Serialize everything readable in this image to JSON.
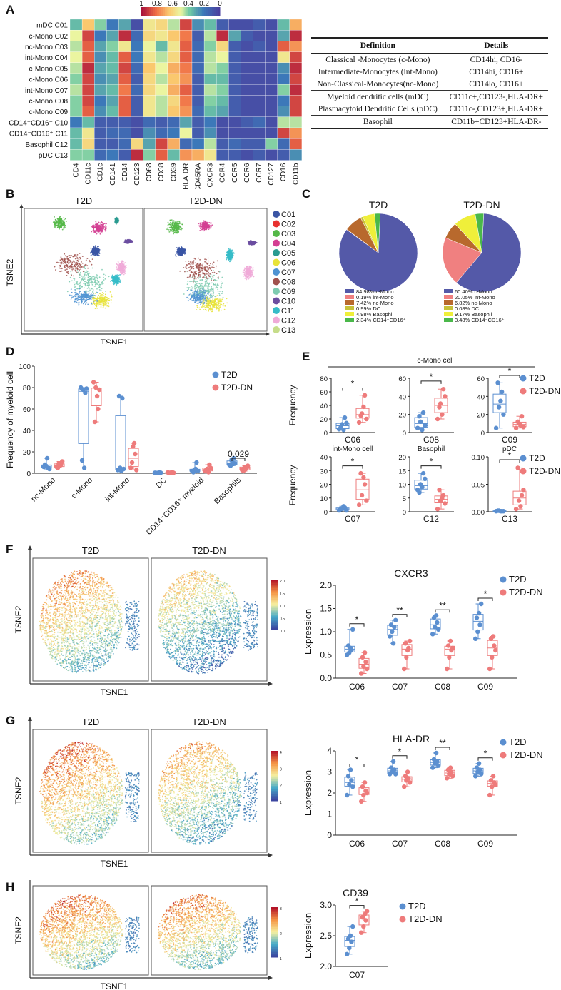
{
  "panels": {
    "A": "A",
    "B": "B",
    "C": "C",
    "D": "D",
    "E": "E",
    "F": "F",
    "G": "G",
    "H": "H"
  },
  "colors": {
    "t2d": "#5b8fd0",
    "t2ddn": "#ee7b7b"
  },
  "heatmap": {
    "scale_labels": [
      "1",
      "0.8",
      "0.6",
      "0.4",
      "0.2",
      "0"
    ],
    "rows": [
      "mDC C01",
      "c-Mono C02",
      "nc-Mono C03",
      "int-Mono C04",
      "c-Mono C05",
      "c-Mono C06",
      "int-Mono C07",
      "c-Mono C08",
      "c-Mono C09",
      "CD14⁻CD16⁺ C10",
      "CD14⁻CD16⁺ C11",
      "Basophil C12",
      "pDC C13"
    ],
    "cols": [
      "CD4",
      "CD11c",
      "CD1c",
      "CD141",
      "CD14",
      "CD123",
      "CD68",
      "CD38",
      "CD39",
      "HLA-DR",
      "CD45RA",
      "CXCR3",
      "CCR4",
      "CCR5",
      "CCR6",
      "CCR7",
      "CD127",
      "CD16",
      "CD11b"
    ],
    "values": [
      [
        0.35,
        0.65,
        0.4,
        0.2,
        0.3,
        0.05,
        0.55,
        0.6,
        0.45,
        0.9,
        0.25,
        0.35,
        0.1,
        0.05,
        0.05,
        0.1,
        0.05,
        0.35,
        0.7
      ],
      [
        0.5,
        0.9,
        0.2,
        0.3,
        0.95,
        0.15,
        0.6,
        0.55,
        0.65,
        0.8,
        0.1,
        0.45,
        0.95,
        0.3,
        0.1,
        0.05,
        0.05,
        0.3,
        0.95
      ],
      [
        0.45,
        0.85,
        0.3,
        0.4,
        0.55,
        0.2,
        0.5,
        0.35,
        0.55,
        0.85,
        0.15,
        0.4,
        0.6,
        0.1,
        0.05,
        0.1,
        0.05,
        0.85,
        0.75
      ],
      [
        0.5,
        0.85,
        0.25,
        0.35,
        0.85,
        0.2,
        0.55,
        0.45,
        0.6,
        0.85,
        0.15,
        0.45,
        0.5,
        0.1,
        0.05,
        0.05,
        0.05,
        0.55,
        0.9
      ],
      [
        0.45,
        0.95,
        0.3,
        0.35,
        0.9,
        0.15,
        0.65,
        0.5,
        0.7,
        0.8,
        0.15,
        0.45,
        0.4,
        0.1,
        0.05,
        0.05,
        0.05,
        0.25,
        0.95
      ],
      [
        0.4,
        0.9,
        0.25,
        0.3,
        0.85,
        0.1,
        0.6,
        0.45,
        0.65,
        0.75,
        0.1,
        0.35,
        0.35,
        0.1,
        0.05,
        0.05,
        0.05,
        0.2,
        0.9
      ],
      [
        0.45,
        0.9,
        0.3,
        0.35,
        0.8,
        0.15,
        0.6,
        0.5,
        0.7,
        0.85,
        0.1,
        0.45,
        0.4,
        0.1,
        0.05,
        0.05,
        0.05,
        0.4,
        0.95
      ],
      [
        0.4,
        0.9,
        0.2,
        0.3,
        0.85,
        0.1,
        0.55,
        0.45,
        0.6,
        0.8,
        0.1,
        0.4,
        0.35,
        0.1,
        0.05,
        0.05,
        0.05,
        0.2,
        0.9
      ],
      [
        0.4,
        0.85,
        0.25,
        0.35,
        0.85,
        0.1,
        0.55,
        0.45,
        0.65,
        0.75,
        0.15,
        0.35,
        0.3,
        0.1,
        0.05,
        0.05,
        0.05,
        0.25,
        0.9
      ],
      [
        0.2,
        0.35,
        0.1,
        0.1,
        0.1,
        0.05,
        0.15,
        0.1,
        0.15,
        0.3,
        0.1,
        0.2,
        0.05,
        0.05,
        0.1,
        0.15,
        0.05,
        0.45,
        0.45
      ],
      [
        0.35,
        0.55,
        0.1,
        0.15,
        0.15,
        0.05,
        0.25,
        0.15,
        0.2,
        0.5,
        0.1,
        0.25,
        0.05,
        0.05,
        0.05,
        0.05,
        0.05,
        0.9,
        0.75
      ],
      [
        0.35,
        0.6,
        0.1,
        0.1,
        0.15,
        0.6,
        0.3,
        0.9,
        0.7,
        0.15,
        0.2,
        0.45,
        0.1,
        0.15,
        0.1,
        0.1,
        0.4,
        0.15,
        0.85
      ],
      [
        0.4,
        0.4,
        0.15,
        0.2,
        0.1,
        0.95,
        0.4,
        0.85,
        0.35,
        0.75,
        0.7,
        0.55,
        0.1,
        0.1,
        0.05,
        0.1,
        0.05,
        0.1,
        0.25
      ]
    ]
  },
  "table": {
    "headers": [
      "Definition",
      "Details"
    ],
    "rows": [
      [
        "Classical -Monocytes (c-Mono)",
        "CD14hi, CD16-"
      ],
      [
        "Intermediate-Monocytes (int-Mono)",
        "CD14hi, CD16+"
      ],
      [
        "Non-Classical-Monocytes(nc-Mono)",
        "CD14lo, CD16+"
      ],
      [
        "Myeloid dendritic cells (mDC)",
        "CD11c+,CD123-,HLA-DR+"
      ],
      [
        "Plasmacytoid Dendritic Cells (pDC)",
        "CD11c-,CD123+,HLA-DR+"
      ],
      [
        "Basophil",
        "CD11b+CD123+HLA-DR-"
      ]
    ]
  },
  "tsneB": {
    "titles": [
      "T2D",
      "T2D-DN"
    ],
    "xlabel": "TSNE1",
    "ylabel": "TSNE2",
    "legend": [
      "C01",
      "C02",
      "C03",
      "C04",
      "C05",
      "C06",
      "C07",
      "C08",
      "C09",
      "C10",
      "C11",
      "C12",
      "C13"
    ],
    "legend_colors": [
      "#3a55a4",
      "#e8312f",
      "#55b848",
      "#d43f93",
      "#2a9b90",
      "#e8e33a",
      "#4f93d2",
      "#a0524d",
      "#7ecbb0",
      "#6b4ea0",
      "#36bcc8",
      "#f0aad8",
      "#c6dd8a"
    ]
  },
  "pies": {
    "titles": [
      "T2D",
      "T2D-DN"
    ],
    "colors": [
      "#5459a8",
      "#f08080",
      "#b8692d",
      "#c7c23a",
      "#efef3a",
      "#4ab84a"
    ],
    "t2d_legend": [
      "84.98% c-Mono",
      "0.19% int-Mono",
      "7.42% nc-Mono",
      "0.99% DC",
      "4.98% Basophil",
      "2.34% CD14⁻CD16⁺"
    ],
    "t2ddn_legend": [
      "60.40% c-Mono",
      "20.05% int-Mono",
      "6.82% nc-Mono",
      "0.08% DC",
      "9.17% Basophil",
      "3.48% CD14⁻CD16⁺"
    ]
  },
  "legend_labels": {
    "t2d": "T2D",
    "t2ddn": "T2D-DN"
  },
  "chart_data": [
    {
      "id": "D",
      "type": "box",
      "title": "",
      "ylabel": "Frequency of myeloid cell",
      "ylim": [
        0,
        100
      ],
      "yticks": [
        0,
        20,
        40,
        60,
        80,
        100
      ],
      "categories": [
        "nc-Mono",
        "c-Mono",
        "int-Mono",
        "DC",
        "CD14⁻CD16⁺ myeloid",
        "Basophils"
      ],
      "series": [
        {
          "name": "T2D",
          "values": [
            [
              6,
              7,
              5,
              8,
              14,
              4
            ],
            [
              80,
              78,
              75,
              12,
              5,
              79
            ],
            [
              3,
              5,
              70,
              72,
              2,
              4
            ],
            [
              0.5,
              0.3,
              0.6,
              0.2,
              0.4,
              0.5
            ],
            [
              2,
              3,
              10,
              1,
              4,
              2
            ],
            [
              8,
              12,
              14,
              7,
              10,
              9
            ]
          ]
        },
        {
          "name": "T2D-DN",
          "values": [
            [
              6,
              9,
              8,
              5,
              7,
              11
            ],
            [
              85,
              80,
              60,
              48,
              72,
              78
            ],
            [
              5,
              25,
              18,
              10,
              28,
              3
            ],
            [
              0.8,
              0.5,
              1,
              0.3,
              0.6,
              0.4
            ],
            [
              2,
              4,
              8,
              3,
              1,
              5
            ],
            [
              3,
              5,
              6,
              2,
              4,
              7
            ]
          ]
        }
      ],
      "annotations": [
        {
          "category": "Basophils",
          "text": "0.029"
        }
      ]
    },
    {
      "id": "E",
      "type": "box",
      "title": "c-Mono cell",
      "ylabel": "Frequency",
      "subplots": [
        {
          "cat": "C06",
          "ylim": [
            0,
            80
          ],
          "yticks": [
            0,
            20,
            40,
            60,
            80
          ],
          "sig": "*",
          "t2d": [
            5,
            12,
            22,
            8,
            4,
            14
          ],
          "t2ddn": [
            15,
            28,
            55,
            25,
            38,
            20
          ]
        },
        {
          "cat": "C08",
          "ylim": [
            0,
            60
          ],
          "yticks": [
            0,
            20,
            40,
            60
          ],
          "sig": "*",
          "t2d": [
            5,
            12,
            22,
            18,
            3,
            8
          ],
          "t2ddn": [
            15,
            32,
            48,
            28,
            20,
            40
          ]
        },
        {
          "cat": "C09",
          "ylim": [
            0,
            60
          ],
          "yticks": [
            0,
            20,
            40,
            60
          ],
          "sig": "*",
          "t2d": [
            5,
            28,
            45,
            55,
            35,
            20
          ],
          "t2ddn": [
            5,
            10,
            18,
            12,
            8,
            6
          ]
        },
        {
          "cat": "C07",
          "title": "int-Mono cell",
          "ylim": [
            0,
            40
          ],
          "yticks": [
            0,
            10,
            20,
            30,
            40
          ],
          "sig": "*",
          "t2d": [
            1,
            2,
            3,
            2,
            4,
            1
          ],
          "t2ddn": [
            5,
            12,
            20,
            28,
            25,
            8
          ]
        },
        {
          "cat": "C12",
          "title": "Basophil",
          "ylim": [
            0,
            20
          ],
          "yticks": [
            0,
            5,
            10,
            15,
            20
          ],
          "sig": "*",
          "t2d": [
            8,
            10,
            14,
            7,
            9,
            12
          ],
          "t2ddn": [
            1,
            4,
            6,
            8,
            5,
            3
          ]
        },
        {
          "cat": "C13",
          "title": "pDC",
          "ylim": [
            0,
            0.1
          ],
          "yticks": [
            0.0,
            0.05,
            0.1
          ],
          "sig": "*",
          "t2d": [
            0.001,
            0.002,
            0.001,
            0.002,
            0.001,
            0.001
          ],
          "t2ddn": [
            0.005,
            0.02,
            0.03,
            0.08,
            0.01,
            0.04
          ]
        }
      ]
    },
    {
      "id": "F",
      "type": "box",
      "title": "CXCR3",
      "ylabel": "Expression",
      "ylim": [
        0,
        2
      ],
      "yticks": [
        0.0,
        0.5,
        1.0,
        1.5,
        2.0
      ],
      "categories": [
        "C06",
        "C07",
        "C08",
        "C09"
      ],
      "sig": [
        "*",
        "**",
        "**",
        "*"
      ],
      "series": [
        {
          "name": "T2D",
          "values": [
            [
              0.5,
              0.55,
              0.6,
              0.7,
              0.65,
              1.05
            ],
            [
              0.9,
              1.0,
              1.1,
              1.15,
              0.75,
              1.25
            ],
            [
              0.95,
              1.1,
              1.2,
              1.3,
              1.35,
              1.05
            ],
            [
              0.85,
              1.0,
              1.15,
              1.3,
              1.4,
              1.6
            ]
          ]
        },
        {
          "name": "T2D-DN",
          "values": [
            [
              0.1,
              0.25,
              0.35,
              0.45,
              0.55,
              0.2
            ],
            [
              0.2,
              0.45,
              0.65,
              0.75,
              0.6,
              0.8
            ],
            [
              0.2,
              0.45,
              0.6,
              0.7,
              0.8,
              0.65
            ],
            [
              0.2,
              0.45,
              0.7,
              0.85,
              0.9,
              0.6
            ]
          ]
        }
      ]
    },
    {
      "id": "G",
      "type": "box",
      "title": "HLA-DR",
      "ylabel": "Expression",
      "ylim": [
        0,
        4
      ],
      "yticks": [
        0,
        1,
        2,
        3,
        4
      ],
      "categories": [
        "C06",
        "C07",
        "C08",
        "C09"
      ],
      "sig": [
        "*",
        "*",
        "**",
        "*"
      ],
      "series": [
        {
          "name": "T2D",
          "values": [
            [
              1.9,
              2.4,
              2.6,
              2.8,
              3.1,
              2.3
            ],
            [
              2.9,
              3.0,
              3.1,
              3.2,
              3.5,
              2.9
            ],
            [
              3.2,
              3.4,
              3.5,
              3.6,
              3.9,
              3.3
            ],
            [
              2.8,
              3.0,
              3.1,
              3.2,
              3.4,
              2.9
            ]
          ]
        },
        {
          "name": "T2D-DN",
          "values": [
            [
              1.6,
              1.9,
              2.1,
              2.3,
              2.5,
              2.0
            ],
            [
              2.3,
              2.6,
              2.7,
              2.8,
              3.0,
              2.5
            ],
            [
              2.7,
              2.9,
              3.0,
              3.1,
              3.2,
              2.8
            ],
            [
              1.9,
              2.3,
              2.5,
              2.6,
              2.8,
              2.4
            ]
          ]
        }
      ]
    },
    {
      "id": "H",
      "type": "box",
      "title": "CD39",
      "ylabel": "Expression",
      "ylim": [
        2.0,
        3.0
      ],
      "yticks": [
        2.0,
        2.5,
        3.0
      ],
      "categories": [
        "C07"
      ],
      "sig": [
        "*"
      ],
      "series": [
        {
          "name": "T2D",
          "values": [
            [
              2.2,
              2.3,
              2.4,
              2.45,
              2.5,
              2.65
            ]
          ]
        },
        {
          "name": "T2D-DN",
          "values": [
            [
              2.55,
              2.65,
              2.75,
              2.8,
              2.85,
              2.9
            ]
          ]
        }
      ]
    }
  ],
  "tsneFGH": {
    "F": {
      "titles": [
        "T2D",
        "T2D-DN"
      ],
      "xlabel": "TSNE1",
      "ylabel": "TSNE2",
      "scale": [
        "2.0",
        "1.5",
        "1.0",
        "0.5",
        "0.0"
      ]
    },
    "G": {
      "titles": [
        "T2D",
        "T2D-DN"
      ],
      "xlabel": "TSNE1",
      "ylabel": "TSNE2",
      "scale": [
        "4",
        "3",
        "2",
        "1"
      ]
    },
    "H": {
      "titles": [],
      "xlabel": "TSNE1",
      "ylabel": "TSNE2",
      "scale": [
        "3",
        "2",
        "1"
      ]
    }
  }
}
